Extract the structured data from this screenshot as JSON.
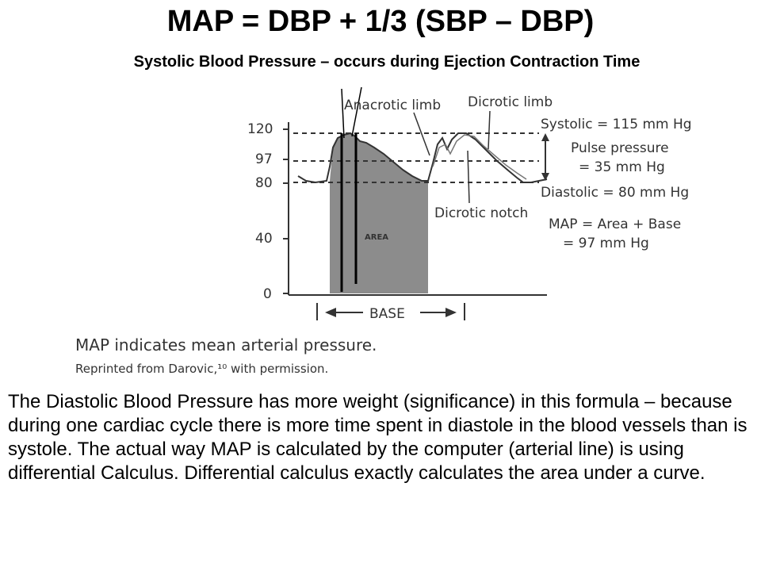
{
  "title": "MAP = DBP + 1/3 (SBP – DBP)",
  "subtitle": "Systolic  Blood Pressure – occurs during Ejection Contraction Time",
  "figure": {
    "y_ticks": [
      "120",
      "97",
      "80",
      "40",
      "0"
    ],
    "labels": {
      "anacrotic_limb": "Anacrotic limb",
      "dicrotic_limb": "Dicrotic limb",
      "dicrotic_notch": "Dicrotic notch",
      "area": "AREA",
      "base": "BASE",
      "systolic": "Systolic = 115 mm Hg",
      "pulse_pressure_line1": "Pulse pressure",
      "pulse_pressure_line2": "= 35 mm Hg",
      "diastolic": "Diastolic = 80 mm Hg",
      "map_line1": "MAP = Area  +  Base",
      "map_line2": "= 97 mm Hg"
    },
    "fill_color": "#8c8c8c"
  },
  "caption": {
    "main": "MAP indicates mean arterial pressure.",
    "credit": "Reprinted from Darovic,¹⁰ with permission."
  },
  "body": "The Diastolic Blood Pressure has more weight (significance) in this formula – because during one cardiac cycle there is more time spent in diastole in the blood vessels than is systole.  The actual way MAP is calculated by the computer (arterial line) is using differential Calculus.  Differential calculus exactly calculates the area under a curve."
}
